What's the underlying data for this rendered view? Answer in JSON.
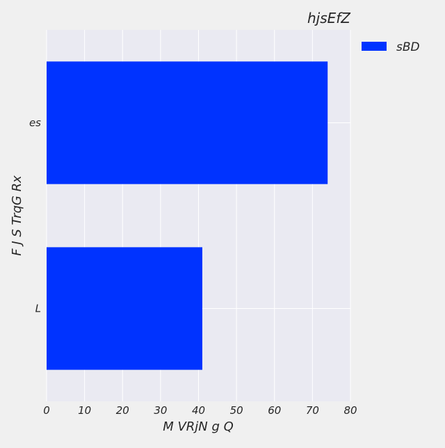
{
  "chart_data": {
    "type": "bar",
    "orientation": "horizontal",
    "title": "hjsEfZ",
    "xlabel": "M VRjN  g Q",
    "ylabel": "F J S TrqG Rx",
    "categories": [
      "es",
      "L"
    ],
    "series": [
      {
        "name": "sBD",
        "values": [
          74,
          41
        ],
        "color": "#0033ff"
      }
    ],
    "xlim": [
      0,
      80
    ],
    "xticks": [
      0,
      10,
      20,
      30,
      40,
      50,
      60,
      70,
      80
    ],
    "grid": true,
    "legend_position": "outside-top-right",
    "colors": {
      "background": "#f0f0f0",
      "plot_background": "#eaeaf2",
      "grid": "#ffffff",
      "text": "#262626"
    }
  }
}
